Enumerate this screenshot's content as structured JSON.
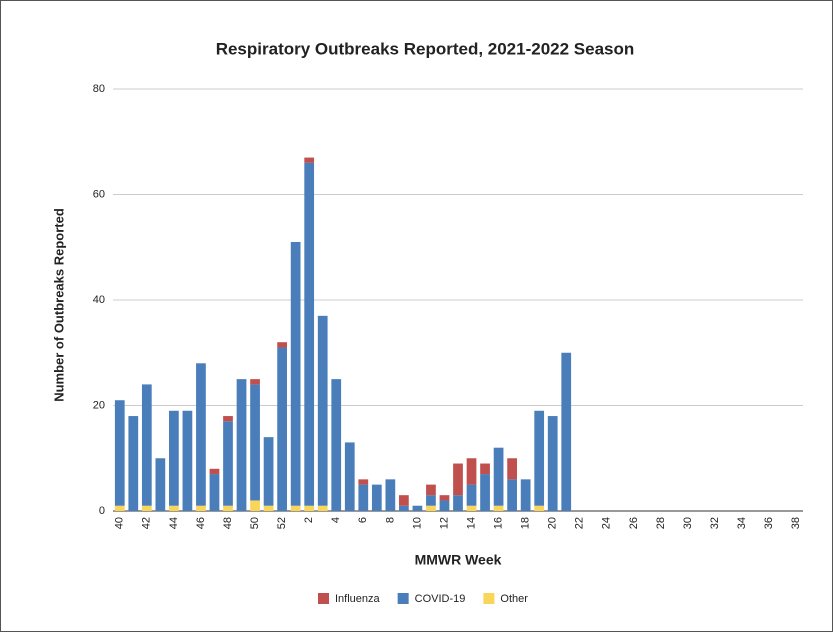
{
  "chart_data": {
    "type": "stacked_bar",
    "title": "Respiratory Outbreaks Reported, 2021-2022 Season",
    "x_label": "MMWR Week",
    "y_label": "Number of Outbreaks Reported",
    "categories": [
      "40",
      null,
      "42",
      null,
      "44",
      null,
      "46",
      null,
      "48",
      null,
      "50",
      null,
      "52",
      null,
      "2",
      null,
      "4",
      null,
      "6",
      null,
      "8",
      null,
      "10",
      null,
      "12",
      null,
      "14",
      null,
      "16",
      null,
      "18",
      null,
      "20",
      null,
      "22",
      null,
      "24",
      null,
      "26",
      null,
      "28",
      null,
      "30",
      null,
      "32",
      null,
      "34",
      null,
      "36",
      null,
      "38"
    ],
    "series": [
      {
        "name": "Influenza",
        "color": "#c0504d",
        "values": [
          0,
          0,
          0,
          0,
          0,
          0,
          0,
          1,
          1,
          0,
          1,
          0,
          1,
          0,
          1,
          0,
          0,
          0,
          1,
          0,
          0,
          2,
          0,
          2,
          1,
          6,
          5,
          2,
          0,
          4,
          0,
          0,
          0,
          0,
          0,
          0,
          0,
          0,
          0,
          0,
          0,
          0,
          0,
          0,
          0,
          0,
          0,
          0,
          0,
          0,
          0
        ]
      },
      {
        "name": "COVID-19",
        "color": "#4a7ebb",
        "values": [
          20,
          18,
          23,
          10,
          18,
          19,
          27,
          7,
          16,
          25,
          22,
          13,
          31,
          50,
          65,
          36,
          25,
          13,
          5,
          5,
          6,
          1,
          1,
          2,
          2,
          3,
          4,
          7,
          11,
          6,
          6,
          18,
          18,
          30,
          0,
          0,
          0,
          0,
          0,
          0,
          0,
          0,
          0,
          0,
          0,
          0,
          0,
          0,
          0,
          0,
          0
        ]
      },
      {
        "name": "Other",
        "color": "#f9d55a",
        "values": [
          1,
          0,
          1,
          0,
          1,
          0,
          1,
          0,
          1,
          0,
          2,
          1,
          0,
          1,
          1,
          1,
          0,
          0,
          0,
          0,
          0,
          0,
          0,
          1,
          0,
          0,
          1,
          0,
          1,
          0,
          0,
          1,
          0,
          0,
          0,
          0,
          0,
          0,
          0,
          0,
          0,
          0,
          0,
          0,
          0,
          0,
          0,
          0,
          0,
          0,
          0
        ]
      }
    ],
    "ylim": [
      0,
      80
    ],
    "yticks": [
      0,
      20,
      40,
      60,
      80
    ],
    "grid": true,
    "legend": "bottom"
  }
}
